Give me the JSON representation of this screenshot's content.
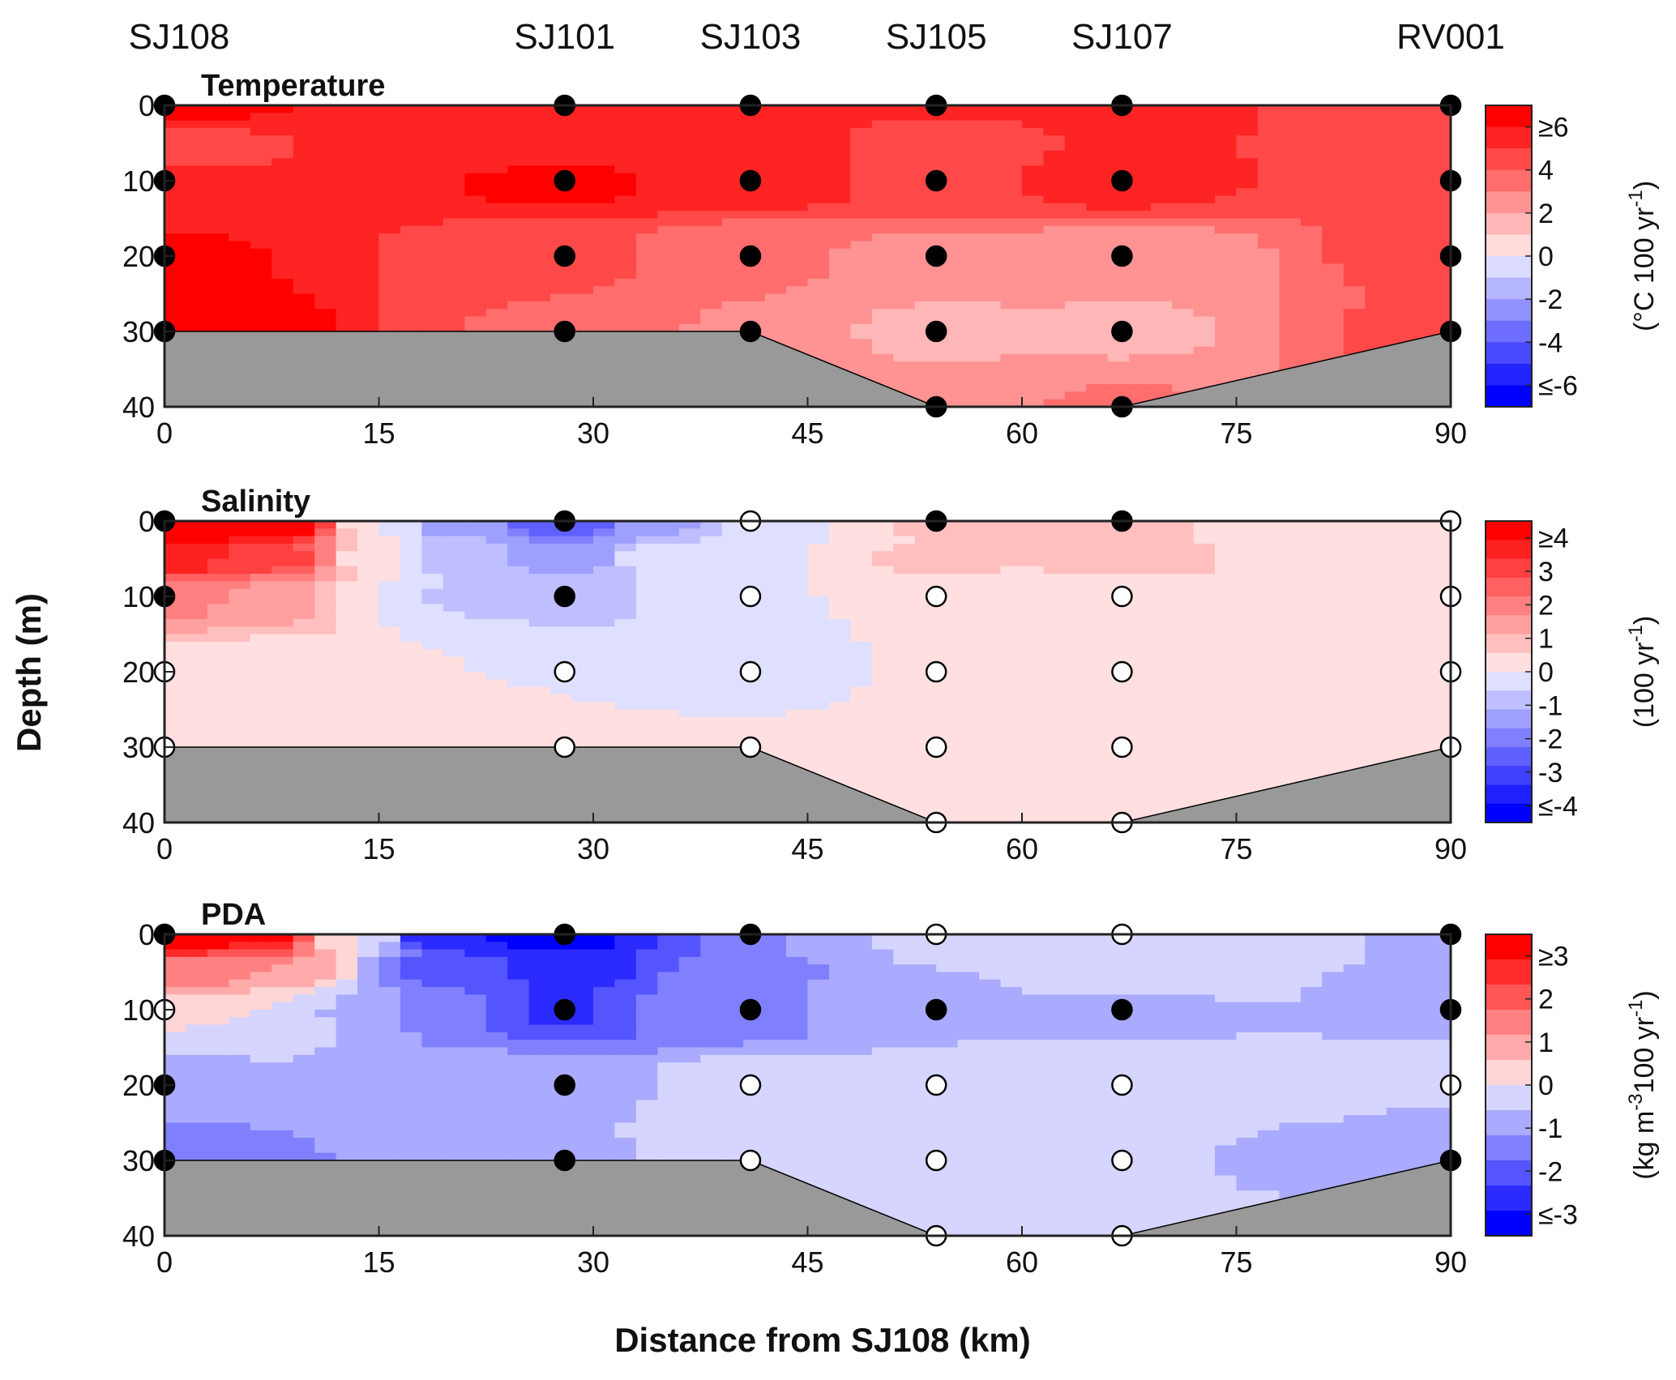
{
  "station_labels": [
    "SJ108",
    "SJ101",
    "SJ103",
    "SJ105",
    "SJ107",
    "RV001"
  ],
  "station_distances_km": [
    0,
    28,
    41,
    54,
    67,
    90
  ],
  "xlabel": "Distance from SJ108 (km)",
  "ylabel": "Depth (m)",
  "x_ticks": [
    "0",
    "15",
    "30",
    "45",
    "60",
    "75",
    "90"
  ],
  "y_ticks": [
    "0",
    "10",
    "20",
    "30",
    "40"
  ],
  "colors": {
    "land": "#999999",
    "red_max": "#ff0000",
    "blue_max": "#0000ff"
  },
  "chart_data": [
    {
      "type": "heatmap",
      "subtype": "depth-section contour",
      "title": "Temperature",
      "xlabel": "Distance from SJ108 (km)",
      "ylabel": "Depth (m)",
      "xlim": [
        0,
        90
      ],
      "ylim": [
        40,
        0
      ],
      "colorbar": {
        "unit_main": "(°C 100 yr",
        "unit_sup": "-1",
        "unit_end": ")",
        "ticks": [
          "≥6",
          "4",
          "2",
          "0",
          "-2",
          "-4",
          "≤-6"
        ],
        "range": [
          -6,
          6
        ],
        "levels": 14
      },
      "bathymetry": [
        [
          0,
          30
        ],
        [
          41,
          30
        ],
        [
          54,
          40
        ],
        [
          67,
          40
        ],
        [
          90,
          30
        ]
      ],
      "samples": [
        {
          "x": 0,
          "depth": 0,
          "value": 5.6
        },
        {
          "x": 0,
          "depth": 5,
          "value": 3.8
        },
        {
          "x": 0,
          "depth": 10,
          "value": 4.6
        },
        {
          "x": 0,
          "depth": 20,
          "value": 5.2
        },
        {
          "x": 0,
          "depth": 30,
          "value": 6.0
        },
        {
          "x": 28,
          "depth": 0,
          "value": 4.6
        },
        {
          "x": 28,
          "depth": 5,
          "value": 4.6
        },
        {
          "x": 28,
          "depth": 10,
          "value": 5.3
        },
        {
          "x": 28,
          "depth": 20,
          "value": 3.6
        },
        {
          "x": 28,
          "depth": 30,
          "value": 3.4
        },
        {
          "x": 41,
          "depth": 0,
          "value": 4.6
        },
        {
          "x": 41,
          "depth": 5,
          "value": 4.6
        },
        {
          "x": 41,
          "depth": 10,
          "value": 4.7
        },
        {
          "x": 41,
          "depth": 20,
          "value": 2.6
        },
        {
          "x": 41,
          "depth": 30,
          "value": 2.5
        },
        {
          "x": 54,
          "depth": 0,
          "value": 4.6
        },
        {
          "x": 54,
          "depth": 5,
          "value": 3.8
        },
        {
          "x": 54,
          "depth": 10,
          "value": 4.2
        },
        {
          "x": 54,
          "depth": 20,
          "value": 2.4
        },
        {
          "x": 54,
          "depth": 30,
          "value": 1.5
        },
        {
          "x": 54,
          "depth": 40,
          "value": 2.5
        },
        {
          "x": 67,
          "depth": 0,
          "value": 4.6
        },
        {
          "x": 67,
          "depth": 5,
          "value": 4.3
        },
        {
          "x": 67,
          "depth": 10,
          "value": 4.6
        },
        {
          "x": 67,
          "depth": 20,
          "value": 1.8
        },
        {
          "x": 67,
          "depth": 30,
          "value": 1.6
        },
        {
          "x": 67,
          "depth": 40,
          "value": 2.6
        },
        {
          "x": 90,
          "depth": 0,
          "value": 3.8
        },
        {
          "x": 90,
          "depth": 5,
          "value": 3.8
        },
        {
          "x": 90,
          "depth": 10,
          "value": 3.8
        },
        {
          "x": 90,
          "depth": 20,
          "value": 3.6
        },
        {
          "x": 90,
          "depth": 30,
          "value": 3.6
        }
      ]
    },
    {
      "type": "heatmap",
      "subtype": "depth-section contour",
      "title": "Salinity",
      "xlabel": "Distance from SJ108 (km)",
      "ylabel": "Depth (m)",
      "xlim": [
        0,
        90
      ],
      "ylim": [
        40,
        0
      ],
      "colorbar": {
        "unit_main": "(100 yr",
        "unit_sup": "-1",
        "unit_end": ")",
        "ticks": [
          "≥4",
          "3",
          "2",
          "1",
          "0",
          "-1",
          "-2",
          "-3",
          "≤-4"
        ],
        "range": [
          -4,
          4
        ],
        "levels": 16
      },
      "bathymetry": [
        [
          0,
          30
        ],
        [
          41,
          30
        ],
        [
          54,
          40
        ],
        [
          67,
          40
        ],
        [
          90,
          30
        ]
      ],
      "samples": [
        {
          "x": 0,
          "depth": 0,
          "value": 4.6
        },
        {
          "x": 0,
          "depth": 5,
          "value": 3.4
        },
        {
          "x": 0,
          "depth": 10,
          "value": 1.6
        },
        {
          "x": 0,
          "depth": 20,
          "value": 0.2
        },
        {
          "x": 0,
          "depth": 30,
          "value": 0
        },
        {
          "x": 8,
          "depth": 0,
          "value": 4.2
        },
        {
          "x": 8,
          "depth": 5,
          "value": 2.6
        },
        {
          "x": 8,
          "depth": 10,
          "value": 1.4
        },
        {
          "x": 8,
          "depth": 20,
          "value": 0
        },
        {
          "x": 15,
          "depth": 0,
          "value": 0
        },
        {
          "x": 15,
          "depth": 5,
          "value": 0.2
        },
        {
          "x": 15,
          "depth": 10,
          "value": 0
        },
        {
          "x": 20,
          "depth": 0,
          "value": -1.4
        },
        {
          "x": 20,
          "depth": 5,
          "value": -0.7
        },
        {
          "x": 20,
          "depth": 10,
          "value": -0.6
        },
        {
          "x": 28,
          "depth": 0,
          "value": -2.3
        },
        {
          "x": 28,
          "depth": 5,
          "value": -1.2
        },
        {
          "x": 28,
          "depth": 10,
          "value": -0.7
        },
        {
          "x": 28,
          "depth": 20,
          "value": 0
        },
        {
          "x": 28,
          "depth": 30,
          "value": 0
        },
        {
          "x": 35,
          "depth": 0,
          "value": -1.2
        },
        {
          "x": 35,
          "depth": 5,
          "value": -0.3
        },
        {
          "x": 41,
          "depth": 0,
          "value": -0.2
        },
        {
          "x": 41,
          "depth": 5,
          "value": 0
        },
        {
          "x": 41,
          "depth": 10,
          "value": 0
        },
        {
          "x": 41,
          "depth": 20,
          "value": 0
        },
        {
          "x": 41,
          "depth": 30,
          "value": 0
        },
        {
          "x": 48,
          "depth": 0,
          "value": 0
        },
        {
          "x": 54,
          "depth": 0,
          "value": 0.7
        },
        {
          "x": 54,
          "depth": 5,
          "value": 0.6
        },
        {
          "x": 54,
          "depth": 10,
          "value": 0
        },
        {
          "x": 54,
          "depth": 20,
          "value": 0
        },
        {
          "x": 54,
          "depth": 30,
          "value": 0
        },
        {
          "x": 54,
          "depth": 40,
          "value": 0
        },
        {
          "x": 67,
          "depth": 0,
          "value": 0.9
        },
        {
          "x": 67,
          "depth": 5,
          "value": 0.7
        },
        {
          "x": 67,
          "depth": 10,
          "value": 0
        },
        {
          "x": 67,
          "depth": 20,
          "value": 0
        },
        {
          "x": 67,
          "depth": 30,
          "value": 0
        },
        {
          "x": 67,
          "depth": 40,
          "value": 0
        },
        {
          "x": 78,
          "depth": 0,
          "value": 0
        },
        {
          "x": 90,
          "depth": 0,
          "value": 0
        },
        {
          "x": 90,
          "depth": 5,
          "value": 0
        },
        {
          "x": 90,
          "depth": 10,
          "value": 0
        },
        {
          "x": 90,
          "depth": 20,
          "value": 0
        },
        {
          "x": 90,
          "depth": 30,
          "value": 0
        }
      ]
    },
    {
      "type": "heatmap",
      "subtype": "depth-section contour",
      "title": "PDA",
      "xlabel": "Distance from SJ108 (km)",
      "ylabel": "Depth (m)",
      "xlim": [
        0,
        90
      ],
      "ylim": [
        40,
        0
      ],
      "colorbar": {
        "unit_main": "(kg m",
        "unit_sup": "-3",
        "unit_mid": "100 yr",
        "unit_sup2": "-1",
        "unit_end": ")",
        "ticks": [
          "≥3",
          "2",
          "1",
          "0",
          "-1",
          "-2",
          "≤-3"
        ],
        "range": [
          -3,
          3
        ],
        "levels": 12
      },
      "bathymetry": [
        [
          0,
          30
        ],
        [
          41,
          30
        ],
        [
          54,
          40
        ],
        [
          67,
          40
        ],
        [
          90,
          30
        ]
      ],
      "samples": [
        {
          "x": 0,
          "depth": 0,
          "value": 3.2
        },
        {
          "x": 0,
          "depth": 5,
          "value": 1.4
        },
        {
          "x": 0,
          "depth": 10,
          "value": 0
        },
        {
          "x": 0,
          "depth": 20,
          "value": -0.7
        },
        {
          "x": 0,
          "depth": 30,
          "value": -1.3
        },
        {
          "x": 7,
          "depth": 0,
          "value": 2.6
        },
        {
          "x": 7,
          "depth": 5,
          "value": 1.0
        },
        {
          "x": 7,
          "depth": 10,
          "value": 0
        },
        {
          "x": 13,
          "depth": 0,
          "value": 0
        },
        {
          "x": 14,
          "depth": 10,
          "value": -0.6
        },
        {
          "x": 20,
          "depth": 0,
          "value": -2.5
        },
        {
          "x": 20,
          "depth": 5,
          "value": -1.6
        },
        {
          "x": 20,
          "depth": 10,
          "value": -1.4
        },
        {
          "x": 20,
          "depth": 20,
          "value": -0.7
        },
        {
          "x": 28,
          "depth": 0,
          "value": -3.0
        },
        {
          "x": 28,
          "depth": 5,
          "value": -2.2
        },
        {
          "x": 28,
          "depth": 10,
          "value": -2.1
        },
        {
          "x": 28,
          "depth": 20,
          "value": -0.7
        },
        {
          "x": 28,
          "depth": 30,
          "value": -0.6
        },
        {
          "x": 35,
          "depth": 0,
          "value": -2.0
        },
        {
          "x": 35,
          "depth": 10,
          "value": -1.4
        },
        {
          "x": 41,
          "depth": 0,
          "value": -1.2
        },
        {
          "x": 41,
          "depth": 5,
          "value": -1.1
        },
        {
          "x": 41,
          "depth": 10,
          "value": -1.4
        },
        {
          "x": 41,
          "depth": 20,
          "value": 0
        },
        {
          "x": 41,
          "depth": 30,
          "value": 0
        },
        {
          "x": 47,
          "depth": 0,
          "value": -0.6
        },
        {
          "x": 47,
          "depth": 10,
          "value": -0.8
        },
        {
          "x": 54,
          "depth": 0,
          "value": -0.2
        },
        {
          "x": 54,
          "depth": 5,
          "value": -0.5
        },
        {
          "x": 54,
          "depth": 10,
          "value": -0.6
        },
        {
          "x": 54,
          "depth": 20,
          "value": 0
        },
        {
          "x": 54,
          "depth": 30,
          "value": 0
        },
        {
          "x": 54,
          "depth": 40,
          "value": 0
        },
        {
          "x": 67,
          "depth": 0,
          "value": 0
        },
        {
          "x": 67,
          "depth": 5,
          "value": 0
        },
        {
          "x": 67,
          "depth": 10,
          "value": -0.7
        },
        {
          "x": 67,
          "depth": 20,
          "value": 0
        },
        {
          "x": 67,
          "depth": 30,
          "value": 0
        },
        {
          "x": 67,
          "depth": 40,
          "value": 0
        },
        {
          "x": 78,
          "depth": 0,
          "value": 0
        },
        {
          "x": 78,
          "depth": 30,
          "value": -0.6
        },
        {
          "x": 90,
          "depth": 0,
          "value": -0.7
        },
        {
          "x": 90,
          "depth": 5,
          "value": -0.7
        },
        {
          "x": 90,
          "depth": 10,
          "value": -0.7
        },
        {
          "x": 90,
          "depth": 20,
          "value": 0
        },
        {
          "x": 90,
          "depth": 25,
          "value": -0.6
        },
        {
          "x": 90,
          "depth": 30,
          "value": -0.7
        }
      ]
    }
  ]
}
